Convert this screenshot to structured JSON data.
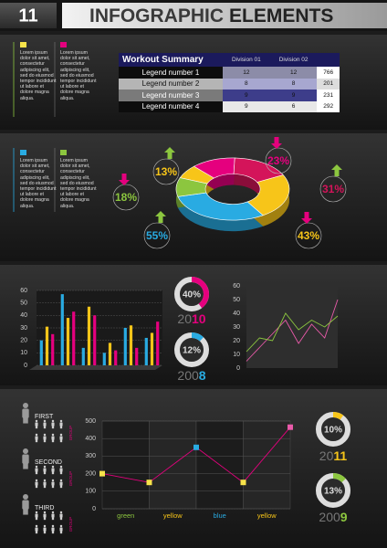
{
  "header": {
    "number": "11",
    "title": "INFOGRAPHIC",
    "title_2": "ELEMENTS"
  },
  "notes": [
    {
      "color": "#f7e34a",
      "text": "Lorem ipsum dolor sit amet, consectetur adipiscing elit, sed do eiusmod tempor incididunt ut labore et dolore magna aliqua."
    },
    {
      "color": "#e5007e",
      "text": "Lorem ipsum dolor sit amet, consectetur adipiscing elit, sed do eiusmod tempor incididunt ut labore et dolore magna aliqua."
    },
    {
      "color": "#29abe2",
      "text": "Lorem ipsum dolor sit amet, consectetur adipiscing elit, sed do eiusmod tempor incididunt ut labore et dolore magna aliqua."
    },
    {
      "color": "#8cc63f",
      "text": "Lorem ipsum dolor sit amet, consectetur adipiscing elit, sed do eiusmod tempor incididunt ut labore et dolore magna aliqua."
    }
  ],
  "table": {
    "title": "Workout Summary",
    "columns": [
      "Division 01",
      "Division 02"
    ],
    "rows": [
      [
        "Legend number 1",
        "12",
        "12",
        "766"
      ],
      [
        "Legend number 2",
        "8",
        "8",
        "201"
      ],
      [
        "Legend number 3",
        "9",
        "9",
        "231"
      ],
      [
        "Legend number 4",
        "9",
        "6",
        "292"
      ]
    ]
  },
  "ranks": {
    "labels": [
      "FIRST",
      "SECOND",
      "THIRD"
    ],
    "group": "GROUP"
  },
  "chart_data": [
    {
      "type": "pie",
      "values": [
        13,
        23,
        31,
        43,
        55,
        18
      ],
      "value_labels": [
        "13%",
        "23%",
        "31%",
        "43%",
        "55%",
        "18%"
      ],
      "colors": [
        "#f7c519",
        "#e5007e",
        "#d4145a",
        "#f7c519",
        "#29abe2",
        "#8cc63f"
      ]
    },
    {
      "type": "bar",
      "categories": [
        null,
        null,
        null,
        null,
        null,
        null
      ],
      "ylim": [
        0,
        60
      ],
      "yticks": [
        0,
        10,
        20,
        30,
        40,
        50,
        60
      ],
      "grid": true,
      "series": [
        {
          "color": "#29abe2",
          "values": [
            20,
            57,
            14,
            10,
            30,
            22
          ]
        },
        {
          "color": "#f7c519",
          "values": [
            31,
            38,
            47,
            18,
            32,
            26
          ]
        },
        {
          "color": "#e5007e",
          "values": [
            25,
            43,
            40,
            12,
            14,
            35
          ]
        }
      ]
    },
    {
      "type": "gauge",
      "values": [
        40
      ],
      "value_labels": [
        "40%"
      ],
      "color": "#e5007e",
      "year": [
        "20",
        "10"
      ]
    },
    {
      "type": "gauge",
      "values": [
        12
      ],
      "value_labels": [
        "12%"
      ],
      "color": "#29abe2",
      "year": [
        "200",
        "8"
      ]
    },
    {
      "type": "line",
      "categories": [
        null,
        null,
        null,
        null,
        null,
        null,
        null,
        null
      ],
      "ylim": [
        0,
        60
      ],
      "yticks": [
        0,
        10,
        20,
        30,
        40,
        50,
        60
      ],
      "series": [
        {
          "color": "#e95aa9",
          "values": [
            5,
            15,
            25,
            35,
            18,
            32,
            22,
            50
          ]
        },
        {
          "color": "#8cc63f",
          "values": [
            12,
            22,
            20,
            40,
            28,
            35,
            30,
            38
          ]
        }
      ]
    },
    {
      "type": "line",
      "x": [
        0,
        1,
        2,
        3,
        4
      ],
      "xlim": [
        0,
        4
      ],
      "ylim": [
        0,
        500
      ],
      "yticks": [
        0,
        100,
        200,
        300,
        400,
        500
      ],
      "grid": true,
      "column_labels": [
        "green",
        "yellow",
        "blue",
        "yellow"
      ],
      "column_colors": [
        "#8cc63f",
        "#f7c519",
        "#29abe2",
        "#f7c519"
      ],
      "marker_colors": [
        "#f7e34a",
        "#f7e34a",
        "#29abe2",
        "#f7e34a",
        "#e95aa9"
      ],
      "series": [
        {
          "color": "#e5007e",
          "values": [
            200,
            150,
            350,
            150,
            465
          ]
        }
      ]
    },
    {
      "type": "gauge",
      "values": [
        10
      ],
      "value_labels": [
        "10%"
      ],
      "color": "#f7c519",
      "year": [
        "20",
        "11"
      ]
    },
    {
      "type": "gauge",
      "values": [
        13
      ],
      "value_labels": [
        "13%"
      ],
      "color": "#8cc63f",
      "year": [
        "200",
        "9"
      ]
    }
  ]
}
